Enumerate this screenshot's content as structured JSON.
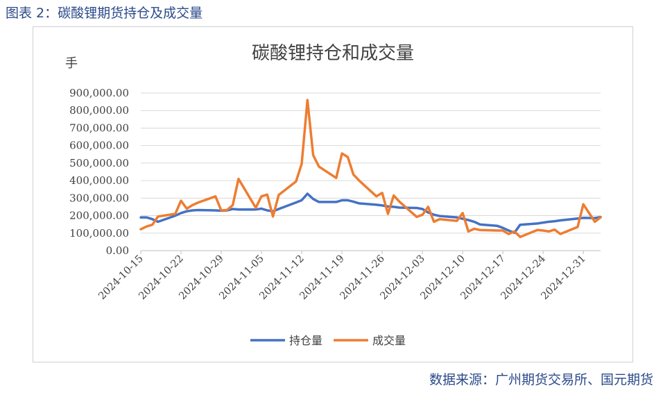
{
  "caption": "图表 2：碳酸锂期货持仓及成交量",
  "source": "数据来源：广州期货交易所、国元期货",
  "chart_data": {
    "type": "line",
    "title": "碳酸锂持仓和成交量",
    "ylabel": "手",
    "ylim": [
      0,
      900000
    ],
    "yticks": [
      0,
      100000,
      200000,
      300000,
      400000,
      500000,
      600000,
      700000,
      800000,
      900000
    ],
    "ytick_labels": [
      "0.00",
      "100,000.00",
      "200,000.00",
      "300,000.00",
      "400,000.00",
      "500,000.00",
      "600,000.00",
      "700,000.00",
      "800,000.00",
      "900,000.00"
    ],
    "xlim": [
      "2024-10-15",
      "2025-01-03"
    ],
    "xtick_labels": [
      "2024-10-15",
      "2024-10-22",
      "2024-10-29",
      "2024-11-05",
      "2024-11-12",
      "2024-11-19",
      "2024-11-26",
      "2024-12-03",
      "2024-12-10",
      "2024-12-17",
      "2024-12-24",
      "2024-12-31"
    ],
    "grid": "horizontal",
    "legend": "bottom",
    "x": [
      "2024-10-15",
      "2024-10-16",
      "2024-10-17",
      "2024-10-18",
      "2024-10-21",
      "2024-10-22",
      "2024-10-23",
      "2024-10-24",
      "2024-10-25",
      "2024-10-28",
      "2024-10-29",
      "2024-10-30",
      "2024-10-31",
      "2024-11-01",
      "2024-11-04",
      "2024-11-05",
      "2024-11-06",
      "2024-11-07",
      "2024-11-08",
      "2024-11-11",
      "2024-11-12",
      "2024-11-13",
      "2024-11-14",
      "2024-11-15",
      "2024-11-18",
      "2024-11-19",
      "2024-11-20",
      "2024-11-21",
      "2024-11-22",
      "2024-11-25",
      "2024-11-26",
      "2024-11-27",
      "2024-11-28",
      "2024-11-29",
      "2024-12-02",
      "2024-12-03",
      "2024-12-04",
      "2024-12-05",
      "2024-12-06",
      "2024-12-09",
      "2024-12-10",
      "2024-12-11",
      "2024-12-12",
      "2024-12-13",
      "2024-12-16",
      "2024-12-17",
      "2024-12-18",
      "2024-12-19",
      "2024-12-20",
      "2024-12-23",
      "2024-12-24",
      "2024-12-25",
      "2024-12-26",
      "2024-12-27",
      "2024-12-30",
      "2024-12-31",
      "2025-01-02",
      "2025-01-03"
    ],
    "series": [
      {
        "name": "持仓量",
        "color": "#4472c4",
        "values": [
          190000,
          190000,
          180000,
          165000,
          200000,
          215000,
          225000,
          230000,
          232000,
          230000,
          228000,
          230000,
          238000,
          235000,
          235000,
          240000,
          230000,
          225000,
          238000,
          275000,
          288000,
          325000,
          295000,
          278000,
          278000,
          288000,
          288000,
          280000,
          270000,
          262000,
          258000,
          252000,
          250000,
          246000,
          244000,
          238000,
          218000,
          205000,
          198000,
          190000,
          182000,
          175000,
          165000,
          150000,
          142000,
          130000,
          115000,
          102000,
          148000,
          155000,
          160000,
          165000,
          168000,
          173000,
          183000,
          187000,
          186000,
          192000
        ]
      },
      {
        "name": "成交量",
        "color": "#ed7d31",
        "values": [
          122000,
          138000,
          148000,
          195000,
          210000,
          285000,
          240000,
          260000,
          275000,
          310000,
          230000,
          232000,
          260000,
          410000,
          245000,
          310000,
          320000,
          195000,
          318000,
          395000,
          495000,
          860000,
          545000,
          480000,
          415000,
          555000,
          535000,
          435000,
          400000,
          310000,
          330000,
          210000,
          315000,
          280000,
          193000,
          205000,
          250000,
          165000,
          180000,
          170000,
          215000,
          110000,
          125000,
          118000,
          115000,
          115000,
          95000,
          110000,
          78000,
          118000,
          115000,
          110000,
          120000,
          95000,
          135000,
          265000,
          165000,
          190000
        ]
      }
    ]
  }
}
